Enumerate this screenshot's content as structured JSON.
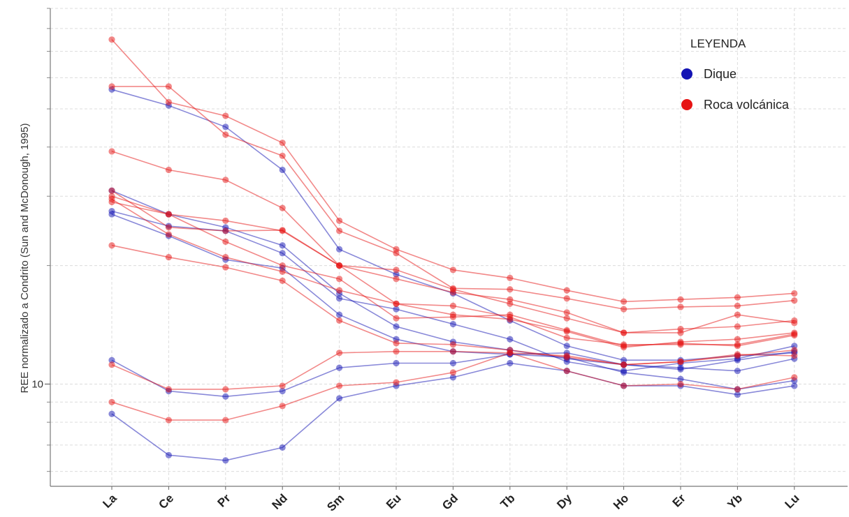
{
  "chart_data": {
    "type": "line",
    "title": "",
    "xlabel": "",
    "ylabel": "REE normalizado a Condrito (Sun and McDonough, 1995)",
    "y_scale": "log",
    "ylim": [
      5.5,
      90
    ],
    "grid": true,
    "categories": [
      "La",
      "Ce",
      "Pr",
      "Nd",
      "Sm",
      "Eu",
      "Gd",
      "Tb",
      "Dy",
      "Ho",
      "Er",
      "Yb",
      "Lu"
    ],
    "y_tick_labels": [
      {
        "value": 10,
        "label": "10"
      }
    ],
    "legend": {
      "title": "LEYENDA",
      "position": "top-right",
      "entries": [
        {
          "label": "Dique",
          "color": "#1414b4"
        },
        {
          "label": "Roca volcánica",
          "color": "#e61414"
        }
      ]
    },
    "series": [
      {
        "group": "Dique",
        "values": [
          56,
          51,
          45,
          35,
          22,
          19,
          17,
          14.5,
          12.5,
          11.5,
          11.5,
          11.8,
          12
        ]
      },
      {
        "group": "Dique",
        "values": [
          31,
          27,
          25,
          22.5,
          17,
          14,
          12.8,
          12.2,
          11.6,
          11.2,
          11,
          10.8,
          11.6
        ]
      },
      {
        "group": "Dique",
        "values": [
          27.5,
          25.2,
          24.5,
          21.5,
          16.5,
          15.5,
          14.2,
          13,
          11.4,
          10.8,
          11.3,
          11.6,
          12.5
        ]
      },
      {
        "group": "Dique",
        "values": [
          27,
          23.8,
          20.7,
          19.7,
          15,
          13,
          12.1,
          11.9,
          12,
          11.2,
          10.9,
          11.5,
          12.1
        ]
      },
      {
        "group": "Dique",
        "values": [
          11.5,
          9.6,
          9.3,
          9.6,
          11,
          11.3,
          11.3,
          11.9,
          11.7,
          10.7,
          10.3,
          9.7,
          10.2
        ]
      },
      {
        "group": "Dique",
        "values": [
          8.4,
          6.6,
          6.4,
          6.9,
          9.2,
          9.9,
          10.4,
          11.3,
          10.8,
          9.9,
          9.9,
          9.4,
          9.9
        ]
      },
      {
        "group": "Roca volcánica",
        "values": [
          75,
          52,
          48,
          41,
          26,
          22,
          19.5,
          18.6,
          17.3,
          16.2,
          16.4,
          16.6,
          17
        ]
      },
      {
        "group": "Roca volcánica",
        "values": [
          57,
          57,
          43,
          38,
          24.5,
          21.5,
          17.5,
          17.4,
          16.5,
          15.5,
          15.7,
          15.8,
          16.3
        ]
      },
      {
        "group": "Roca volcánica",
        "values": [
          39,
          35,
          33,
          28,
          20,
          19.5,
          17.4,
          16,
          14.7,
          13.5,
          13.5,
          15,
          14.3
        ]
      },
      {
        "group": "Roca volcánica",
        "values": [
          29,
          27,
          26,
          24.5,
          20,
          18.5,
          17.1,
          16.4,
          15.2,
          13.5,
          13.8,
          14,
          14.5
        ]
      },
      {
        "group": "Roca volcánica",
        "values": [
          31,
          25,
          24.5,
          24.6,
          20,
          16,
          15.8,
          14.8,
          13.1,
          12.6,
          12.6,
          12.6,
          13.4
        ]
      },
      {
        "group": "Roca volcánica",
        "values": [
          30,
          27,
          23,
          20,
          18.5,
          14.7,
          14.8,
          15,
          13.7,
          12.5,
          12.7,
          12.5,
          13.3
        ]
      },
      {
        "group": "Roca volcánica",
        "values": [
          29.5,
          24,
          21,
          19.3,
          17.3,
          16,
          15,
          14.6,
          13.6,
          12.4,
          12.8,
          13,
          13.5
        ]
      },
      {
        "group": "Roca volcánica",
        "values": [
          22.5,
          21,
          19.8,
          18.3,
          14.5,
          12.7,
          12.6,
          12.2,
          11.7,
          11.2,
          11.4,
          11.8,
          12.2
        ]
      },
      {
        "group": "Roca volcánica",
        "values": [
          11.2,
          9.7,
          9.7,
          9.9,
          12,
          12.1,
          12.1,
          12,
          10.8,
          9.9,
          10,
          9.7,
          10.4
        ]
      },
      {
        "group": "Roca volcánica",
        "values": [
          9,
          8.1,
          8.1,
          8.8,
          9.9,
          10.1,
          10.7,
          12,
          11.8,
          11.2,
          11.4,
          11.9,
          11.8
        ]
      }
    ]
  }
}
